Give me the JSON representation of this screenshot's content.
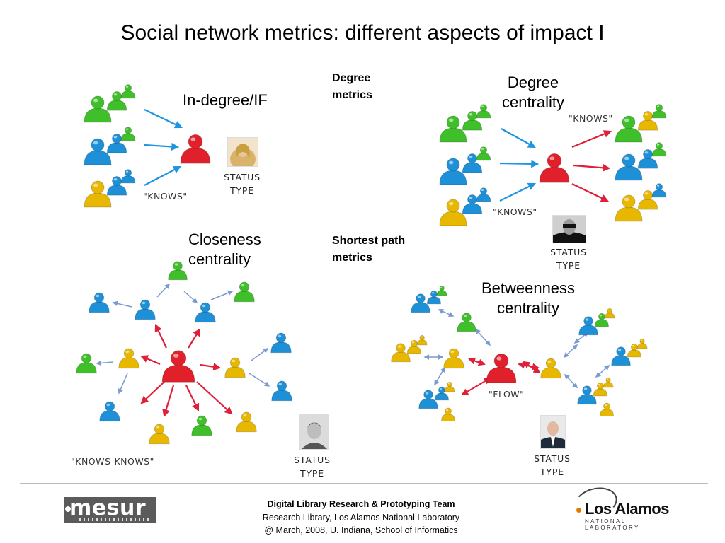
{
  "slide": {
    "title": "Social network metrics: different aspects of impact I"
  },
  "sections": {
    "degree_metrics": "Degree\nmetrics",
    "shortest_path_metrics": "Shortest path\nmetrics"
  },
  "panels": {
    "in_degree": {
      "label": "In-degree/IF",
      "caption": "\"KNOWS\"",
      "status_type": "STATUS\nTYPE"
    },
    "degree_centrality": {
      "label": "Degree\ncentrality",
      "caption_top": "\"KNOWS\"",
      "caption_bottom": "\"KNOWS\"",
      "status_type": "STATUS\nTYPE"
    },
    "closeness": {
      "label": "Closeness\ncentrality",
      "caption": "\"KNOWS-KNOWS\"",
      "status_type": "STATUS\nTYPE"
    },
    "betweenness": {
      "label": "Betweenness\ncentrality",
      "caption": "\"FLOW\"",
      "status_type": "STATUS\nTYPE"
    }
  },
  "footer": {
    "team": "Digital Library Research & Prototyping Team",
    "org": "Research Library, Los Alamos National Laboratory",
    "event": "@ March, 2008, U. Indiana, School of Informatics"
  },
  "logos": {
    "mesur": "mesur",
    "los_alamos": "Los Alamos",
    "los_alamos_sub": "NATIONAL LABORATORY"
  },
  "colors": {
    "green": "#3fbf2a",
    "blue": "#1e90d8",
    "yellow": "#e8b800",
    "red": "#e0202a",
    "arrow_blue": "#1e95e0",
    "arrow_red": "#e0203a",
    "arrow_slate": "#7a9ad0"
  }
}
